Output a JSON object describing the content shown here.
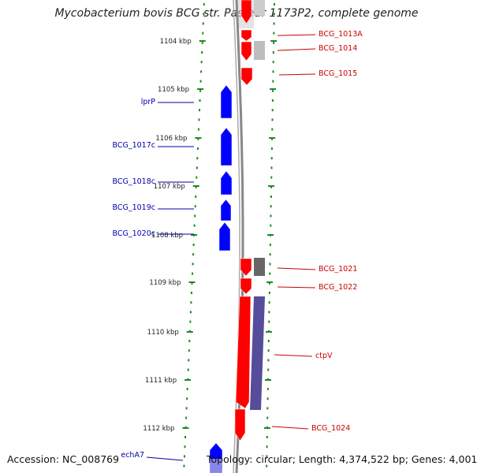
{
  "title": "Mycobacterium bovis BCG str. Pasteur 1173P2, complete genome",
  "footer": {
    "accession": "Accession: NC_008769",
    "topology": "Topology: circular; Length: 4,374,522 bp; Genes: 4,001"
  },
  "colors": {
    "forward_gene": "#ff0000",
    "reverse_gene": "#0000ff",
    "forward_label": "#cc0000",
    "reverse_label": "#0000aa",
    "tick": "#1f8a1f",
    "backbone": "#888888",
    "shading": "#bbbbbb"
  },
  "scale_labels": [
    "1104 kbp",
    "1105 kbp",
    "1106 kbp",
    "1107 kbp",
    "1108 kbp",
    "1109 kbp",
    "1110 kbp",
    "1111 kbp",
    "1112 kbp"
  ],
  "forward_genes": [
    {
      "label": "BCG_1013A"
    },
    {
      "label": "BCG_1014"
    },
    {
      "label": "BCG_1015"
    },
    {
      "label": "BCG_1021"
    },
    {
      "label": "BCG_1022"
    },
    {
      "label": "ctpV"
    },
    {
      "label": "BCG_1024"
    }
  ],
  "reverse_genes": [
    {
      "label": "lprP"
    },
    {
      "label": "BCG_1017c"
    },
    {
      "label": "BCG_1018c"
    },
    {
      "label": "BCG_1019c"
    },
    {
      "label": "BCG_1020c"
    },
    {
      "label": "echA7"
    }
  ]
}
